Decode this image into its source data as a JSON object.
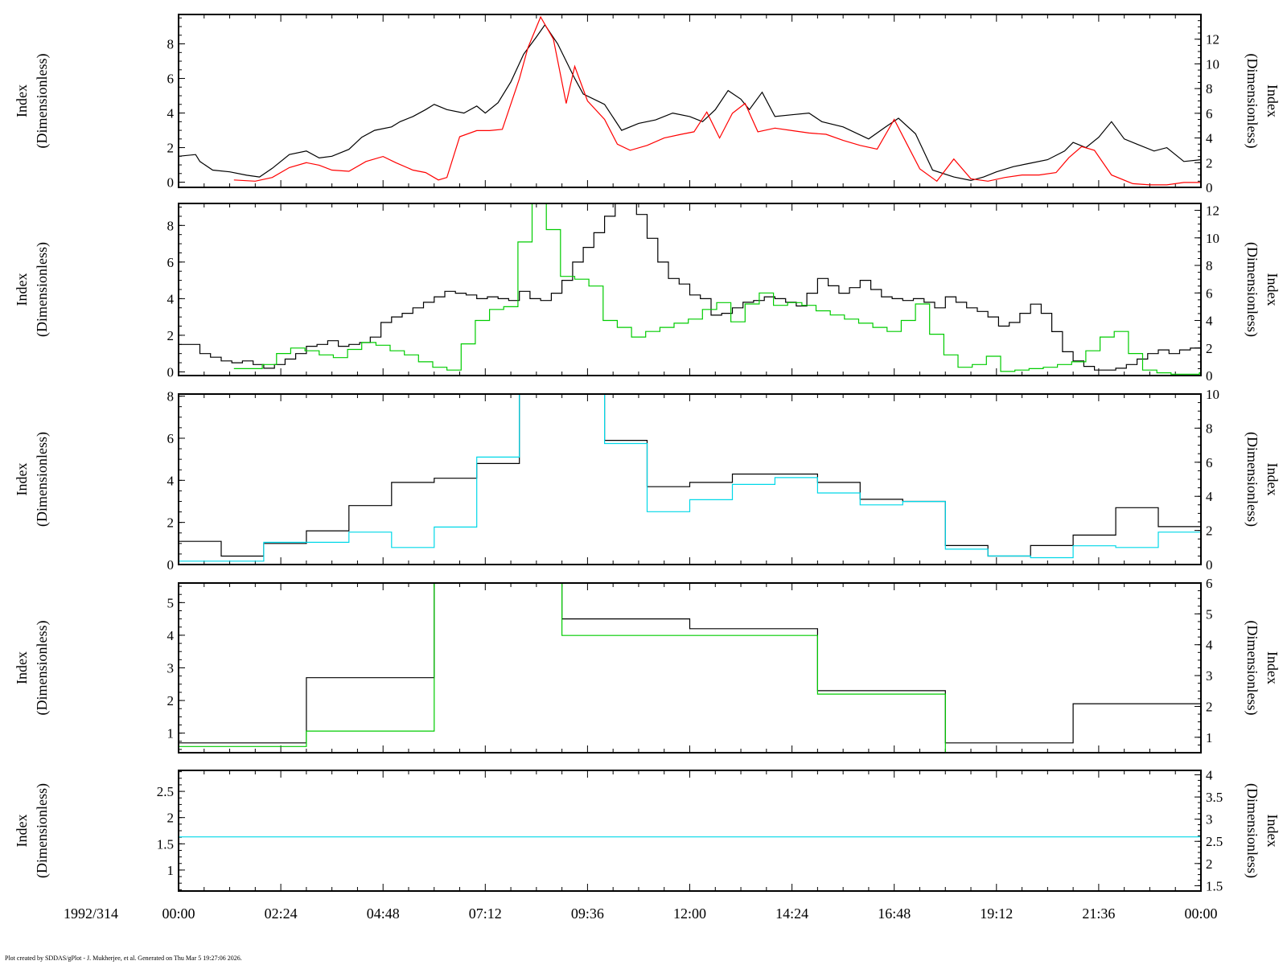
{
  "date_label": "1992/314",
  "x_tick_labels": [
    "00:00",
    "02:24",
    "04:48",
    "07:12",
    "09:36",
    "12:00",
    "14:24",
    "16:48",
    "19:12",
    "21:36",
    "00:00"
  ],
  "footer": "Plot created by SDDAS/gPlot - J. Mukherjee, et al.  Generated on Thu Mar 5 19:27:06 2026.",
  "colors": {
    "black": "#000000",
    "red": "#ff0000",
    "green": "#00cc00",
    "cyan": "#00d8e8"
  },
  "chart_data": [
    {
      "type": "line",
      "ylabel_left": [
        "Index",
        "(Dimensionless)"
      ],
      "ylabel_right": [
        "Index",
        "(Dimensionless)"
      ],
      "xlim_hours": [
        0,
        24
      ],
      "ylim_left": [
        -0.3,
        9.7
      ],
      "yticks_left": [
        0,
        2,
        4,
        6,
        8
      ],
      "ylim_right": [
        0,
        14
      ],
      "yticks_right": [
        0,
        2,
        4,
        6,
        8,
        10,
        12
      ],
      "series": [
        {
          "color": "#000000",
          "axis": "left",
          "style": "line",
          "x": [
            0,
            0.4,
            0.5,
            0.8,
            1.2,
            1.6,
            1.9,
            2.2,
            2.6,
            3,
            3.3,
            3.6,
            4,
            4.3,
            4.6,
            5,
            5.2,
            5.5,
            5.8,
            6,
            6.3,
            6.7,
            7,
            7.2,
            7.5,
            7.8,
            8.1,
            8.4,
            8.6,
            8.9,
            9.3,
            9.5,
            10,
            10.4,
            10.8,
            11.2,
            11.6,
            12,
            12.3,
            12.6,
            12.9,
            13.2,
            13.4,
            13.7,
            14,
            14.4,
            14.8,
            15.1,
            15.6,
            16.2,
            16.6,
            16.9,
            17.3,
            17.7,
            18.2,
            18.6,
            18.9,
            19.2,
            19.6,
            20,
            20.4,
            20.8,
            21,
            21.3,
            21.6,
            21.9,
            22.2,
            22.5,
            22.9,
            23.2,
            23.6,
            24
          ],
          "y": [
            1.5,
            1.6,
            1.2,
            0.7,
            0.6,
            0.4,
            0.3,
            0.8,
            1.6,
            1.8,
            1.4,
            1.5,
            1.9,
            2.6,
            3,
            3.2,
            3.5,
            3.8,
            4.2,
            4.5,
            4.2,
            4.0,
            4.4,
            4.0,
            4.6,
            5.8,
            7.4,
            8.4,
            9.1,
            8.0,
            6.0,
            5.1,
            4.5,
            3.0,
            3.4,
            3.6,
            4.0,
            3.8,
            3.5,
            4.2,
            5.3,
            4.8,
            4.2,
            5.2,
            3.8,
            3.9,
            4.0,
            3.5,
            3.2,
            2.5,
            3.2,
            3.7,
            2.8,
            0.7,
            0.3,
            0.1,
            0.3,
            0.6,
            0.9,
            1.1,
            1.3,
            1.8,
            2.3,
            2.0,
            2.6,
            3.5,
            2.5,
            2.2,
            1.8,
            2.0,
            1.2,
            1.3
          ]
        },
        {
          "color": "#ff0000",
          "axis": "right",
          "style": "line",
          "x": [
            1.3,
            1.8,
            2.2,
            2.6,
            3,
            3.3,
            3.6,
            4,
            4.4,
            4.8,
            5.1,
            5.5,
            5.8,
            6.1,
            6.3,
            6.6,
            7,
            7.3,
            7.6,
            8,
            8.2,
            8.5,
            8.8,
            9.1,
            9.3,
            9.6,
            10,
            10.3,
            10.6,
            11,
            11.4,
            11.8,
            12.1,
            12.4,
            12.7,
            13,
            13.3,
            13.6,
            14,
            14.4,
            14.8,
            15.2,
            15.6,
            16,
            16.4,
            16.8,
            17.1,
            17.4,
            17.8,
            18.2,
            18.6,
            19,
            19.4,
            19.8,
            20.2,
            20.6,
            20.9,
            21.2,
            21.5,
            21.9,
            22.4,
            22.8,
            23.2,
            23.6,
            24
          ],
          "y": [
            0.6,
            0.5,
            0.8,
            1.6,
            2.0,
            1.8,
            1.4,
            1.3,
            2.1,
            2.5,
            2.0,
            1.4,
            1.2,
            0.6,
            0.8,
            4.1,
            4.6,
            4.6,
            4.7,
            8.8,
            11.3,
            13.8,
            12.0,
            6.8,
            9.8,
            7.0,
            5.5,
            3.5,
            3.0,
            3.4,
            4.0,
            4.3,
            4.5,
            6.1,
            4.0,
            6.0,
            6.8,
            4.5,
            4.8,
            4.6,
            4.4,
            4.3,
            3.8,
            3.4,
            3.1,
            5.5,
            3.5,
            1.5,
            0.5,
            2.3,
            0.7,
            0.5,
            0.8,
            1.0,
            1.0,
            1.2,
            2.4,
            3.3,
            3.0,
            1.0,
            0.3,
            0.2,
            0.2,
            0.4,
            0.4
          ]
        }
      ]
    },
    {
      "type": "line",
      "ylabel_left": [
        "Index",
        "(Dimensionless)"
      ],
      "ylabel_right": [
        "Index",
        "(Dimensionless)"
      ],
      "xlim_hours": [
        0,
        24
      ],
      "ylim_left": [
        -0.2,
        9.2
      ],
      "yticks_left": [
        0,
        2,
        4,
        6,
        8
      ],
      "ylim_right": [
        0,
        12.5
      ],
      "yticks_right": [
        0,
        2,
        4,
        6,
        8,
        10,
        12
      ],
      "series": [
        {
          "color": "#000000",
          "axis": "left",
          "style": "step",
          "bin_hours": 0.25,
          "start_hour": 0,
          "values": [
            1.5,
            1.5,
            1.0,
            0.8,
            0.6,
            0.5,
            0.6,
            0.4,
            0.2,
            0.4,
            0.7,
            1.0,
            1.4,
            1.5,
            1.7,
            1.4,
            1.5,
            1.6,
            1.9,
            2.7,
            3.0,
            3.2,
            3.5,
            3.8,
            4.1,
            4.4,
            4.3,
            4.2,
            4.0,
            4.1,
            4.0,
            3.9,
            4.4,
            4.0,
            3.9,
            4.3,
            5.0,
            6.0,
            6.8,
            7.6,
            8.5,
            9.5,
            9.9,
            8.6,
            7.3,
            6.0,
            5.1,
            4.8,
            4.2,
            4.0,
            3.1,
            3.2,
            3.5,
            3.8,
            3.9,
            4.1,
            4.0,
            3.8,
            3.6,
            4.3,
            5.1,
            4.7,
            4.3,
            4.6,
            5.0,
            4.5,
            4.1,
            4.0,
            3.9,
            4.0,
            3.8,
            3.5,
            4.1,
            3.8,
            3.5,
            3.3,
            3.0,
            2.5,
            2.7,
            3.2,
            3.7,
            3.2,
            2.2,
            1.1,
            0.6,
            0.3,
            0.1,
            0.1,
            0.2,
            0.4,
            0.7,
            1.0,
            1.2,
            1.0,
            1.2,
            1.3,
            1.4,
            1.6,
            1.9,
            2.2,
            2.5,
            2.9,
            3.5,
            2.9,
            2.2,
            2.0,
            2.2,
            1.8,
            2.0,
            1.6,
            1.0,
            1.2
          ]
        },
        {
          "color": "#00cc00",
          "axis": "right",
          "style": "step",
          "bin_hours": 0.3333,
          "start_hour": 1.3,
          "values": [
            0.5,
            0.5,
            0.8,
            1.6,
            2.0,
            1.8,
            1.5,
            1.3,
            1.9,
            2.4,
            2.2,
            1.8,
            1.5,
            1.0,
            0.6,
            0.4,
            2.3,
            4.0,
            4.8,
            5.0,
            9.7,
            12.6,
            10.6,
            7.2,
            7.0,
            6.5,
            4.0,
            3.5,
            2.8,
            3.2,
            3.5,
            3.8,
            4.1,
            4.8,
            5.3,
            3.9,
            5.2,
            6.0,
            5.1,
            5.3,
            5.1,
            4.7,
            4.4,
            4.1,
            3.8,
            3.5,
            3.2,
            4.0,
            5.2,
            3.0,
            1.5,
            0.6,
            0.8,
            1.4,
            0.3,
            0.4,
            0.5,
            0.6,
            0.8,
            1.0,
            1.8,
            2.8,
            3.2,
            1.6,
            0.4,
            0.2,
            0.1,
            0.1,
            0.2,
            0.2
          ]
        }
      ]
    },
    {
      "type": "line",
      "ylabel_left": [
        "Index",
        "(Dimensionless)"
      ],
      "ylabel_right": [
        "Index",
        "(Dimensionless)"
      ],
      "xlim_hours": [
        0,
        24
      ],
      "ylim_left": [
        0,
        8.1
      ],
      "yticks_left": [
        0,
        2,
        4,
        6,
        8
      ],
      "ylim_right": [
        0,
        10
      ],
      "yticks_right": [
        0,
        2,
        4,
        6,
        8,
        10
      ],
      "series": [
        {
          "color": "#000000",
          "axis": "left",
          "style": "step",
          "bin_hours": 1,
          "values": [
            1.1,
            0.4,
            1.0,
            1.6,
            2.8,
            3.9,
            4.1,
            4.8,
            8.8,
            10.0,
            5.9,
            3.7,
            3.9,
            4.3,
            4.3,
            3.9,
            3.1,
            3.0,
            0.9,
            0.4,
            0.9,
            1.4,
            2.7,
            1.8,
            1.3
          ]
        },
        {
          "color": "#00d8e8",
          "axis": "right",
          "style": "step",
          "bin_hours": 1,
          "values": [
            0.2,
            0.2,
            1.3,
            1.3,
            1.9,
            1.0,
            2.2,
            6.3,
            12.0,
            11.0,
            7.1,
            3.1,
            3.8,
            4.7,
            5.1,
            4.2,
            3.5,
            3.7,
            0.9,
            0.5,
            0.4,
            1.1,
            1.0,
            1.9,
            0.1,
            0.2
          ]
        }
      ]
    },
    {
      "type": "line",
      "ylabel_left": [
        "Index",
        "(Dimensionless)"
      ],
      "ylabel_right": [
        "Index",
        "(Dimensionless)"
      ],
      "xlim_hours": [
        0,
        24
      ],
      "ylim_left": [
        0.4,
        5.6
      ],
      "yticks_left": [
        1,
        2,
        3,
        4,
        5
      ],
      "ylim_right": [
        0.5,
        6
      ],
      "yticks_right": [
        1,
        2,
        3,
        4,
        5,
        6
      ],
      "series": [
        {
          "color": "#000000",
          "axis": "left",
          "style": "step",
          "bin_hours": 3,
          "values": [
            0.7,
            2.7,
            5.6,
            4.5,
            4.2,
            2.3,
            0.7,
            1.9
          ]
        },
        {
          "color": "#00cc00",
          "axis": "right",
          "style": "step",
          "bin_hours": 3,
          "values": [
            0.7,
            1.2,
            6.0,
            4.3,
            4.3,
            2.4,
            0.5,
            0.5
          ]
        }
      ]
    },
    {
      "type": "line",
      "ylabel_left": [
        "Index",
        "(Dimensionless)"
      ],
      "ylabel_right": [
        "Index",
        "(Dimensionless)"
      ],
      "xlim_hours": [
        0,
        24
      ],
      "ylim_left": [
        0.6,
        2.9
      ],
      "ytick_labels_left": [
        "1",
        "1.5",
        "2",
        "2.5"
      ],
      "yticks_left": [
        1,
        1.5,
        2,
        2.5
      ],
      "ylim_right": [
        1.38,
        4.1
      ],
      "ytick_labels_right": [
        "1.5",
        "2",
        "2.5",
        "3",
        "3.5",
        "4"
      ],
      "yticks_right": [
        1.5,
        2,
        2.5,
        3,
        3.5,
        4
      ],
      "series": [
        {
          "color": "#00d8e8",
          "axis": "right",
          "style": "flat",
          "value": 2.6
        }
      ]
    }
  ]
}
